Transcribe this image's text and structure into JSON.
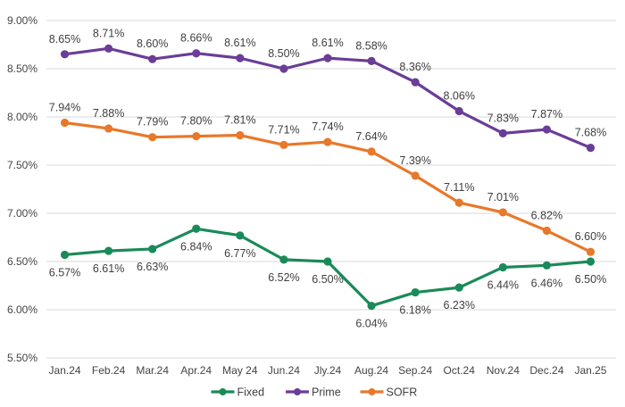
{
  "chart_data": {
    "type": "line",
    "title": "",
    "xlabel": "",
    "ylabel": "",
    "ylim": [
      5.5,
      9.0
    ],
    "y_ticks": [
      "5.50%",
      "6.00%",
      "6.50%",
      "7.00%",
      "7.50%",
      "8.00%",
      "8.50%",
      "9.00%"
    ],
    "y_tick_values": [
      5.5,
      6.0,
      6.5,
      7.0,
      7.5,
      8.0,
      8.5,
      9.0
    ],
    "grid": true,
    "legend_position": "bottom",
    "categories": [
      "Jan.24",
      "Feb.24",
      "Mar.24",
      "Apr.24",
      "May 24",
      "Jun.24",
      "Jly.24",
      "Aug.24",
      "Sep.24",
      "Oct.24",
      "Nov.24",
      "Dec.24",
      "Jan.25"
    ],
    "series": [
      {
        "name": "Fixed",
        "color": "#1a8a5a",
        "label_position": "below",
        "values": [
          6.57,
          6.61,
          6.63,
          6.84,
          6.77,
          6.52,
          6.5,
          6.04,
          6.18,
          6.23,
          6.44,
          6.46,
          6.5
        ],
        "labels": [
          "6.57%",
          "6.61%",
          "6.63%",
          "6.84%",
          "6.77%",
          "6.52%",
          "6.50%",
          "6.04%",
          "6.18%",
          "6.23%",
          "6.44%",
          "6.46%",
          "6.50%"
        ]
      },
      {
        "name": "Prime",
        "color": "#6a3d96",
        "label_position": "above",
        "values": [
          8.65,
          8.71,
          8.6,
          8.66,
          8.61,
          8.5,
          8.61,
          8.58,
          8.36,
          8.06,
          7.83,
          7.87,
          7.68
        ],
        "labels": [
          "8.65%",
          "8.71%",
          "8.60%",
          "8.66%",
          "8.61%",
          "8.50%",
          "8.61%",
          "8.58%",
          "8.36%",
          "8.06%",
          "7.83%",
          "7.87%",
          "7.68%"
        ]
      },
      {
        "name": "SOFR",
        "color": "#e8782a",
        "label_position": "above",
        "values": [
          7.94,
          7.88,
          7.79,
          7.8,
          7.81,
          7.71,
          7.74,
          7.64,
          7.39,
          7.11,
          7.01,
          6.82,
          6.6
        ],
        "labels": [
          "7.94%",
          "7.88%",
          "7.79%",
          "7.80%",
          "7.81%",
          "7.71%",
          "7.74%",
          "7.64%",
          "7.39%",
          "7.11%",
          "7.01%",
          "6.82%",
          "6.60%"
        ]
      }
    ]
  }
}
